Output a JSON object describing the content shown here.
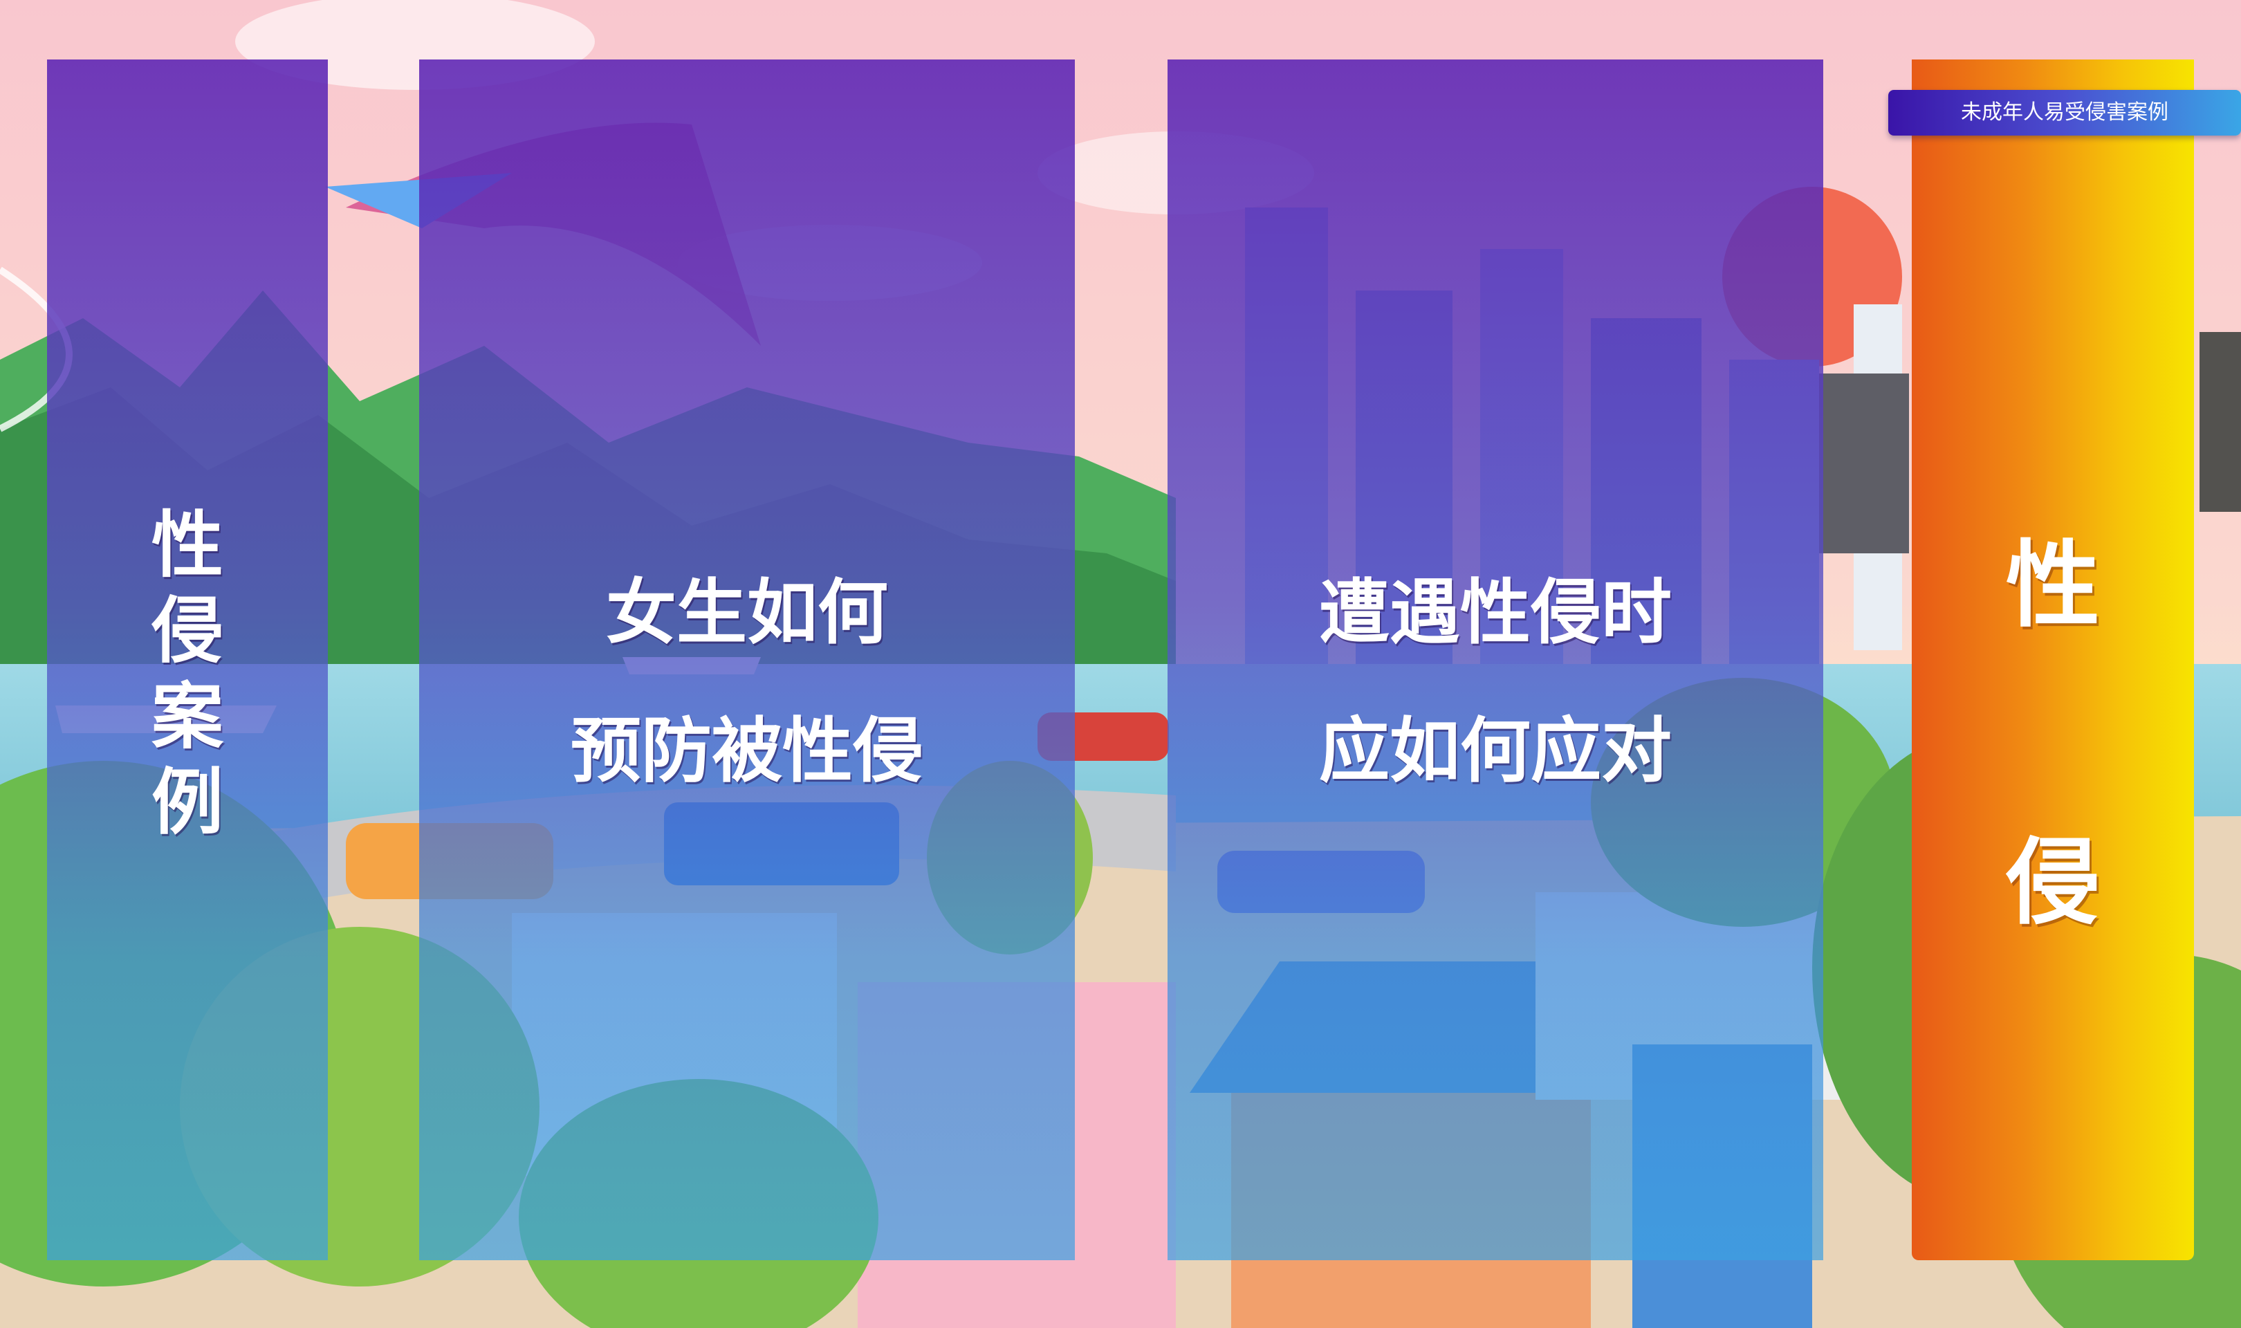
{
  "label_tag": "未成年人易受侵害案例",
  "panels": [
    {
      "title": "性侵案例"
    },
    {
      "line1": "女生如何",
      "line2": "预防被性侵"
    },
    {
      "line1": "遭遇性侵时",
      "line2": "应如何应对"
    },
    {
      "char1": "性",
      "char2": "侵"
    }
  ],
  "colors": {
    "panel_purple_top": "#5c24b4",
    "panel_blue_bottom": "#3ca0e2",
    "orange_left": "#e85a17",
    "yellow_right": "#f7e400",
    "tag_start": "#3a14a8",
    "tag_end": "#3aa6e6"
  },
  "background": "cartoon-city-landscape"
}
